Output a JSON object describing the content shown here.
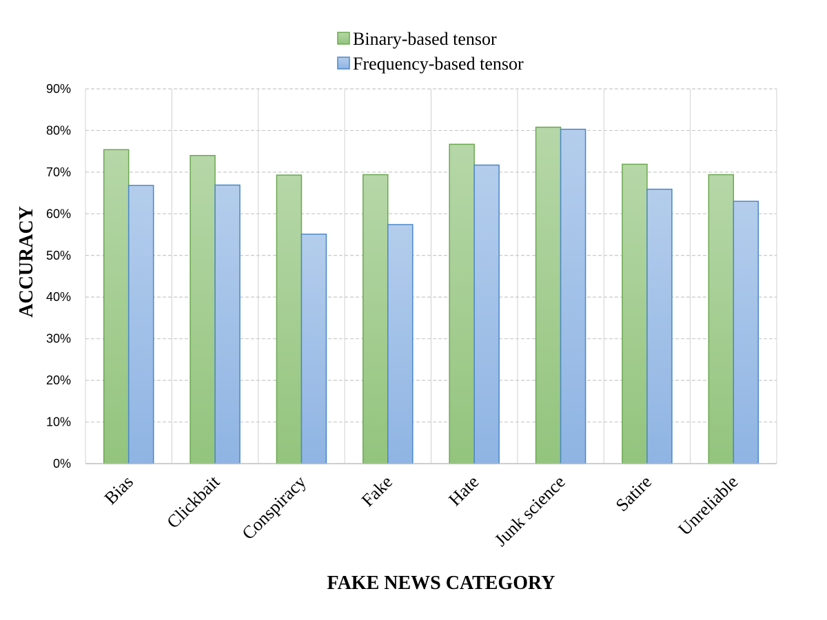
{
  "chart_data": {
    "type": "bar",
    "categories": [
      "Bias",
      "Clickbait",
      "Conspiracy",
      "Fake",
      "Hate",
      "Junk science",
      "Satire",
      "Unreliable"
    ],
    "series": [
      {
        "name": "Binary-based tensor",
        "values": [
          0.754,
          0.74,
          0.693,
          0.694,
          0.767,
          0.808,
          0.719,
          0.694
        ],
        "color_top": "#b6d7a8",
        "color_bottom": "#93c47d",
        "stroke": "#6aa84f"
      },
      {
        "name": "Frequency-based tensor",
        "values": [
          0.668,
          0.669,
          0.551,
          0.574,
          0.717,
          0.803,
          0.659,
          0.63
        ],
        "color_top": "#b4cdec",
        "color_bottom": "#8fb4e3",
        "stroke": "#4a86c8"
      }
    ],
    "ylim": [
      0,
      0.9
    ],
    "yticks": [
      "0%",
      "10%",
      "20%",
      "30%",
      "40%",
      "50%",
      "60%",
      "70%",
      "80%",
      "90%"
    ],
    "xlabel": "FAKE NEWS CATEGORY",
    "ylabel": "ACCURACY",
    "grid": true,
    "legend_position": "top-center"
  }
}
